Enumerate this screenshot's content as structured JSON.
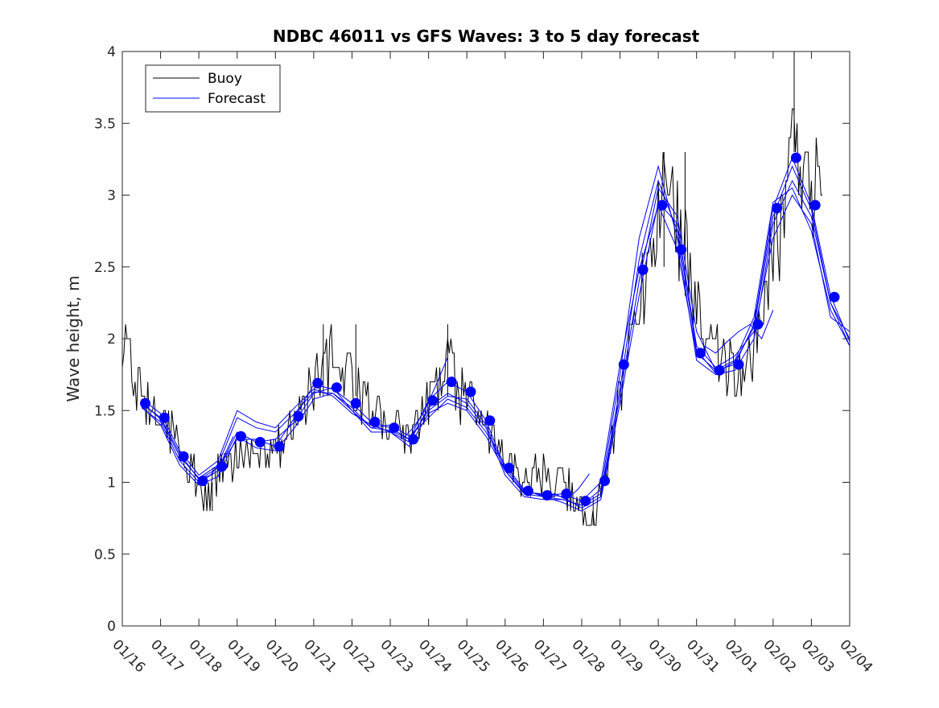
{
  "chart_data": {
    "type": "line",
    "title": "NDBC 46011 vs GFS Waves: 3 to 5 day forecast",
    "xlabel": "",
    "ylabel": "Wave height, m",
    "xlim": [
      0,
      19
    ],
    "ylim": [
      0,
      4
    ],
    "grid": false,
    "legend_position": "top-left",
    "x_tick_labels": [
      "01/16",
      "01/17",
      "01/18",
      "01/19",
      "01/20",
      "01/21",
      "01/22",
      "01/23",
      "01/24",
      "01/25",
      "01/26",
      "01/27",
      "01/28",
      "01/29",
      "01/30",
      "01/31",
      "02/01",
      "02/02",
      "02/03",
      "02/04"
    ],
    "y_ticks": [
      0,
      0.5,
      1,
      1.5,
      2,
      2.5,
      3,
      3.5,
      4
    ],
    "y_tick_labels": [
      "0",
      "0.5",
      "1",
      "1.5",
      "2",
      "2.5",
      "3",
      "3.5",
      "4"
    ],
    "colors": {
      "buoy": "#000000",
      "forecast": "#0000ff",
      "points": "#0000ff"
    },
    "legend": [
      {
        "name": "Buoy",
        "color": "#000000"
      },
      {
        "name": "Forecast",
        "color": "#0000ff"
      }
    ],
    "buoy_outline": [
      [
        0.0,
        1.85
      ],
      [
        0.1,
        2.0
      ],
      [
        0.25,
        1.75
      ],
      [
        0.5,
        1.55
      ],
      [
        0.8,
        1.5
      ],
      [
        1.0,
        1.45
      ],
      [
        1.3,
        1.35
      ],
      [
        1.6,
        1.2
      ],
      [
        1.8,
        1.05
      ],
      [
        2.0,
        0.95
      ],
      [
        2.3,
        0.9
      ],
      [
        2.5,
        1.05
      ],
      [
        2.8,
        1.1
      ],
      [
        3.0,
        1.2
      ],
      [
        3.3,
        1.25
      ],
      [
        3.6,
        1.2
      ],
      [
        4.0,
        1.22
      ],
      [
        4.3,
        1.3
      ],
      [
        4.6,
        1.45
      ],
      [
        4.9,
        1.65
      ],
      [
        5.1,
        1.8
      ],
      [
        5.5,
        1.85
      ],
      [
        5.9,
        1.7
      ],
      [
        6.3,
        1.55
      ],
      [
        6.6,
        1.45
      ],
      [
        7.0,
        1.4
      ],
      [
        7.3,
        1.35
      ],
      [
        7.6,
        1.35
      ],
      [
        7.9,
        1.5
      ],
      [
        8.2,
        1.65
      ],
      [
        8.5,
        1.8
      ],
      [
        8.8,
        1.65
      ],
      [
        9.2,
        1.5
      ],
      [
        9.6,
        1.35
      ],
      [
        10.0,
        1.15
      ],
      [
        10.4,
        1.05
      ],
      [
        10.8,
        1.05
      ],
      [
        11.2,
        1.02
      ],
      [
        11.6,
        0.95
      ],
      [
        11.9,
        0.85
      ],
      [
        12.2,
        0.78
      ],
      [
        12.4,
        0.8
      ],
      [
        12.6,
        1.0
      ],
      [
        12.8,
        1.3
      ],
      [
        13.1,
        1.7
      ],
      [
        13.3,
        2.0
      ],
      [
        13.6,
        2.4
      ],
      [
        13.9,
        2.8
      ],
      [
        14.1,
        3.0
      ],
      [
        14.3,
        2.9
      ],
      [
        14.6,
        2.75
      ],
      [
        14.9,
        2.5
      ],
      [
        15.1,
        2.1
      ],
      [
        15.4,
        1.9
      ],
      [
        15.7,
        1.85
      ],
      [
        16.0,
        1.75
      ],
      [
        16.3,
        1.8
      ],
      [
        16.5,
        1.95
      ],
      [
        16.8,
        2.3
      ],
      [
        17.0,
        2.6
      ],
      [
        17.3,
        2.9
      ],
      [
        17.55,
        3.6
      ],
      [
        17.8,
        3.1
      ],
      [
        18.05,
        3.05
      ],
      [
        18.3,
        3.1
      ]
    ],
    "buoy_spikes": [
      [
        17.55,
        4.0
      ],
      [
        17.55,
        3.3
      ],
      [
        14.15,
        3.3
      ],
      [
        14.15,
        2.5
      ],
      [
        14.7,
        3.3
      ],
      [
        14.7,
        2.3
      ],
      [
        5.25,
        2.1
      ],
      [
        5.25,
        1.6
      ],
      [
        6.1,
        2.1
      ],
      [
        6.1,
        1.6
      ],
      [
        8.5,
        2.1
      ],
      [
        8.5,
        1.6
      ],
      [
        2.35,
        0.8
      ],
      [
        2.35,
        1.0
      ],
      [
        12.3,
        0.7
      ],
      [
        12.3,
        0.9
      ]
    ],
    "forecast_series": [
      {
        "name": "Forecast run 1",
        "x": [
          0.5,
          1.0,
          1.5,
          2.0,
          2.5,
          3.0,
          3.5,
          4.0,
          4.5,
          5.0,
          5.5,
          6.0,
          6.5,
          7.0,
          7.5,
          8.0,
          8.5,
          9.0,
          9.5,
          10.0,
          10.5,
          11.0,
          11.5,
          12.0,
          12.5,
          13.0,
          13.5,
          14.0,
          14.5,
          15.0,
          15.5,
          16.0,
          16.5,
          17.0,
          17.5,
          18.0,
          18.5,
          19.0
        ],
        "values": [
          1.55,
          1.45,
          1.2,
          1.02,
          1.1,
          1.3,
          1.3,
          1.25,
          1.45,
          1.68,
          1.65,
          1.55,
          1.42,
          1.38,
          1.3,
          1.57,
          1.7,
          1.63,
          1.43,
          1.1,
          0.94,
          0.91,
          0.92,
          0.87,
          1.0,
          1.82,
          2.48,
          2.93,
          2.62,
          1.9,
          1.78,
          1.82,
          2.1,
          2.91,
          3.26,
          2.93,
          2.3,
          1.98
        ]
      },
      {
        "name": "Forecast run 2",
        "x": [
          0.5,
          1.0,
          1.5,
          2.0,
          2.5,
          3.0,
          3.5,
          4.0,
          4.5,
          5.0,
          5.5,
          6.0,
          6.5,
          7.0,
          7.5,
          8.0,
          8.5,
          9.0,
          9.5,
          10.0,
          10.5,
          11.0,
          11.5,
          12.0,
          12.5,
          13.0,
          13.5,
          14.0,
          14.5,
          15.0,
          15.5,
          16.0,
          16.5,
          17.0,
          17.5,
          18.0,
          18.5,
          19.0
        ],
        "values": [
          1.52,
          1.42,
          1.15,
          1.0,
          1.08,
          1.35,
          1.28,
          1.3,
          1.42,
          1.62,
          1.66,
          1.5,
          1.35,
          1.35,
          1.28,
          1.52,
          1.62,
          1.55,
          1.38,
          1.05,
          0.9,
          0.88,
          0.88,
          0.84,
          0.95,
          1.75,
          2.7,
          3.2,
          2.7,
          1.85,
          1.75,
          1.78,
          2.0,
          2.8,
          3.1,
          2.85,
          2.25,
          2.0
        ]
      },
      {
        "name": "Forecast run 3",
        "x": [
          0.5,
          1.0,
          1.5,
          2.0,
          2.5,
          3.0,
          3.5,
          4.0,
          4.5,
          5.0,
          5.5,
          6.0,
          6.5,
          7.0,
          7.5,
          8.0,
          8.5,
          9.0,
          9.5,
          10.0,
          10.5,
          11.0,
          11.5,
          12.0,
          12.5,
          13.0,
          13.5,
          14.0,
          14.5,
          15.0,
          15.5,
          16.0,
          16.5,
          17.0,
          17.5,
          18.0,
          18.5,
          19.0
        ],
        "values": [
          1.58,
          1.48,
          1.22,
          1.05,
          1.15,
          1.5,
          1.42,
          1.38,
          1.52,
          1.65,
          1.6,
          1.48,
          1.4,
          1.35,
          1.25,
          1.48,
          1.55,
          1.5,
          1.32,
          1.08,
          0.93,
          0.92,
          0.9,
          0.82,
          0.9,
          1.6,
          2.4,
          3.05,
          2.85,
          2.05,
          1.78,
          1.85,
          2.15,
          2.95,
          3.05,
          2.75,
          2.2,
          1.95
        ]
      },
      {
        "name": "Forecast run 4",
        "x": [
          0.5,
          1.0,
          1.5,
          2.0,
          2.5,
          3.0,
          3.5,
          4.0,
          4.5,
          5.0,
          5.5,
          6.0,
          6.5,
          7.0,
          7.5,
          8.0,
          8.5,
          9.0,
          9.5,
          10.0,
          10.5,
          11.0,
          11.5,
          12.0,
          12.5,
          13.0,
          13.5,
          14.0,
          14.5,
          15.0,
          15.5,
          16.0,
          16.5,
          17.0,
          17.5,
          18.0,
          18.5,
          19.0
        ],
        "values": [
          1.53,
          1.4,
          1.12,
          0.98,
          1.04,
          1.32,
          1.24,
          1.22,
          1.38,
          1.58,
          1.62,
          1.52,
          1.38,
          1.4,
          1.32,
          1.45,
          1.58,
          1.52,
          1.35,
          1.12,
          0.95,
          0.9,
          0.86,
          0.8,
          0.88,
          1.55,
          2.3,
          2.95,
          2.8,
          1.95,
          1.8,
          1.88,
          2.05,
          2.7,
          3.0,
          2.8,
          2.15,
          2.05
        ]
      },
      {
        "name": "Forecast run 5",
        "x": [
          0.5,
          1.0,
          1.5,
          2.0,
          2.5,
          3.0,
          3.5,
          4.0,
          4.5,
          5.0,
          5.5,
          6.0,
          6.5,
          7.0,
          7.5,
          8.0,
          8.5,
          9.0,
          9.5,
          10.0,
          10.5,
          11.0,
          11.5,
          12.0,
          12.5,
          13.0,
          13.5,
          14.0,
          14.5,
          15.0,
          15.5,
          16.0,
          16.5,
          17.0,
          17.5,
          18.0,
          18.5,
          19.0
        ],
        "values": [
          1.56,
          1.44,
          1.18,
          1.03,
          1.12,
          1.45,
          1.38,
          1.35,
          1.48,
          1.63,
          1.62,
          1.5,
          1.38,
          1.36,
          1.3,
          1.5,
          1.6,
          1.58,
          1.4,
          1.08,
          0.92,
          0.9,
          0.88,
          0.84,
          0.92,
          1.65,
          2.55,
          3.1,
          2.75,
          1.92,
          1.76,
          1.84,
          2.08,
          2.85,
          3.2,
          2.9,
          2.25,
          1.95
        ]
      }
    ],
    "forecast_segments": [
      {
        "name": "Segment A",
        "x": [
          2.0,
          2.3,
          2.6,
          2.9
        ],
        "values": [
          1.02,
          1.05,
          1.15,
          1.32
        ]
      },
      {
        "name": "Segment B",
        "x": [
          7.3,
          7.6,
          7.9,
          8.2,
          8.5
        ],
        "values": [
          1.3,
          1.38,
          1.5,
          1.68,
          1.87
        ]
      },
      {
        "name": "Segment C",
        "x": [
          11.0,
          11.3,
          11.6,
          11.9,
          12.2
        ],
        "values": [
          0.91,
          0.92,
          0.88,
          0.95,
          1.06
        ]
      },
      {
        "name": "Segment D",
        "x": [
          15.2,
          15.5,
          15.8,
          16.1,
          16.4,
          16.7,
          17.0
        ],
        "values": [
          1.95,
          1.9,
          1.98,
          2.05,
          2.1,
          2.0,
          2.2
        ]
      }
    ],
    "points": {
      "x": [
        0.6,
        1.1,
        1.6,
        2.1,
        2.6,
        3.1,
        3.6,
        4.1,
        4.6,
        5.1,
        5.6,
        6.1,
        6.6,
        7.1,
        7.6,
        8.1,
        8.6,
        9.1,
        9.6,
        10.1,
        10.6,
        11.1,
        11.6,
        12.1,
        12.6,
        13.1,
        13.6,
        14.1,
        14.6,
        15.1,
        15.6,
        16.1,
        16.6,
        17.1,
        17.6,
        18.1,
        18.6
      ],
      "values": [
        1.55,
        1.45,
        1.18,
        1.01,
        1.11,
        1.32,
        1.28,
        1.25,
        1.46,
        1.69,
        1.66,
        1.55,
        1.42,
        1.38,
        1.3,
        1.57,
        1.7,
        1.63,
        1.43,
        1.1,
        0.94,
        0.91,
        0.92,
        0.87,
        1.01,
        1.82,
        2.48,
        2.93,
        2.62,
        1.9,
        1.78,
        1.82,
        2.1,
        2.91,
        3.26,
        2.93,
        2.29
      ]
    }
  }
}
